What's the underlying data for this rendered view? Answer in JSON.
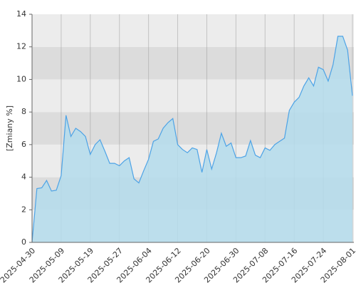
{
  "chart_data": {
    "type": "area",
    "y_label": "[Zmiany %]",
    "categories": [
      "2025-04-30",
      null,
      null,
      null,
      null,
      null,
      "2025-05-09",
      null,
      null,
      null,
      null,
      null,
      "2025-05-19",
      null,
      null,
      null,
      null,
      null,
      "2025-05-27",
      null,
      null,
      null,
      null,
      null,
      "2025-06-04",
      null,
      null,
      null,
      null,
      null,
      "2025-06-12",
      null,
      null,
      null,
      null,
      null,
      "2025-06-20",
      null,
      null,
      null,
      null,
      null,
      "2025-06-30",
      null,
      null,
      null,
      null,
      null,
      "2025-07-08",
      null,
      null,
      null,
      null,
      null,
      "2025-07-16",
      null,
      null,
      null,
      null,
      null,
      "2025-07-24",
      null,
      null,
      null,
      null,
      null,
      "2025-08-01"
    ],
    "values": [
      0,
      3.3,
      3.35,
      3.8,
      3.15,
      3.2,
      4.1,
      7.8,
      6.5,
      7.0,
      6.8,
      6.5,
      5.4,
      6.0,
      6.3,
      5.6,
      4.85,
      4.85,
      4.7,
      5.0,
      5.2,
      3.9,
      3.65,
      4.4,
      5.1,
      6.2,
      6.35,
      7.0,
      7.35,
      7.6,
      6.0,
      5.7,
      5.5,
      5.8,
      5.7,
      4.3,
      5.7,
      4.5,
      5.5,
      6.7,
      5.9,
      6.1,
      5.2,
      5.2,
      5.3,
      6.25,
      5.35,
      5.2,
      5.8,
      5.65,
      6.0,
      6.2,
      6.4,
      8.1,
      8.6,
      8.9,
      9.6,
      10.1,
      9.6,
      10.75,
      10.6,
      9.9,
      10.9,
      12.65,
      12.65,
      11.8,
      9.0
    ],
    "color": "#4da3e6",
    "fill": "#b4dcec",
    "ylim": [
      0,
      14
    ],
    "yticks": [
      0,
      2,
      4,
      6,
      8,
      10,
      12,
      14
    ],
    "grid": true
  }
}
